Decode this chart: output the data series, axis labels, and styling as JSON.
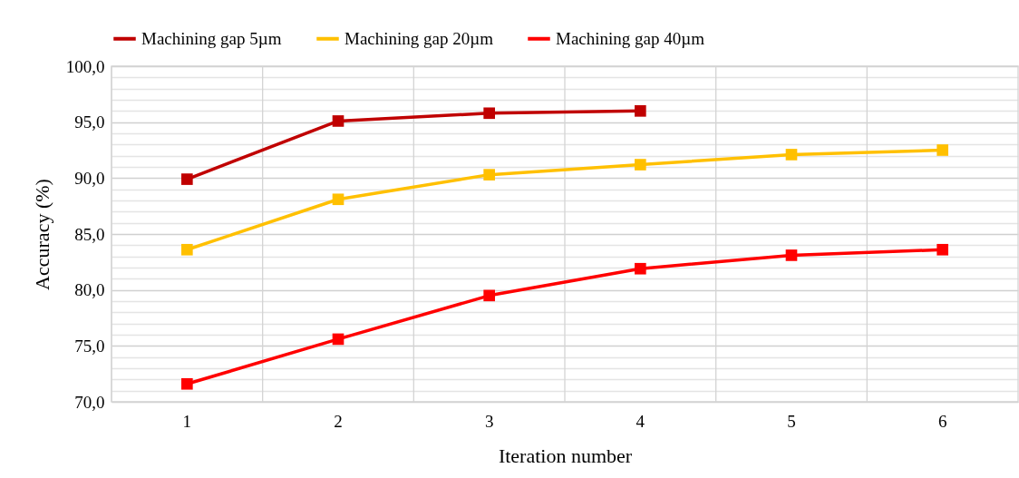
{
  "chart_data": {
    "type": "line",
    "xlabel": "Iteration number",
    "ylabel": "Accuracy (%)",
    "categories": [
      "1",
      "2",
      "3",
      "4",
      "5",
      "6"
    ],
    "series": [
      {
        "name": "Machining gap 5µm",
        "color": "#c00000",
        "values": [
          89.9,
          95.1,
          95.8,
          96.0,
          null,
          null
        ]
      },
      {
        "name": "Machining gap 20µm",
        "color": "#ffc000",
        "values": [
          83.6,
          88.1,
          90.3,
          91.2,
          92.1,
          92.5
        ]
      },
      {
        "name": "Machining gap 40µm",
        "color": "#ff0000",
        "values": [
          71.6,
          75.6,
          79.5,
          81.9,
          83.1,
          83.6
        ]
      }
    ],
    "ylim": [
      70,
      100
    ],
    "yticks": [
      {
        "value": 70,
        "label": "70,0"
      },
      {
        "value": 71,
        "label": null
      },
      {
        "value": 72,
        "label": null
      },
      {
        "value": 73,
        "label": null
      },
      {
        "value": 74,
        "label": null
      },
      {
        "value": 75,
        "label": "75,0"
      },
      {
        "value": 76,
        "label": null
      },
      {
        "value": 77,
        "label": null
      },
      {
        "value": 78,
        "label": null
      },
      {
        "value": 79,
        "label": null
      },
      {
        "value": 80,
        "label": "80,0"
      },
      {
        "value": 81,
        "label": null
      },
      {
        "value": 82,
        "label": null
      },
      {
        "value": 83,
        "label": null
      },
      {
        "value": 84,
        "label": null
      },
      {
        "value": 85,
        "label": "85,0"
      },
      {
        "value": 86,
        "label": null
      },
      {
        "value": 87,
        "label": null
      },
      {
        "value": 88,
        "label": null
      },
      {
        "value": 89,
        "label": null
      },
      {
        "value": 90,
        "label": "90,0"
      },
      {
        "value": 91,
        "label": null
      },
      {
        "value": 92,
        "label": null
      },
      {
        "value": 93,
        "label": null
      },
      {
        "value": 94,
        "label": null
      },
      {
        "value": 95,
        "label": "95,0"
      },
      {
        "value": 96,
        "label": null
      },
      {
        "value": 97,
        "label": null
      },
      {
        "value": 98,
        "label": null
      },
      {
        "value": 99,
        "label": null
      },
      {
        "value": 100,
        "label": "100,0"
      }
    ],
    "grid": true,
    "legend": "top",
    "marker": "square",
    "line_style": "solid"
  }
}
